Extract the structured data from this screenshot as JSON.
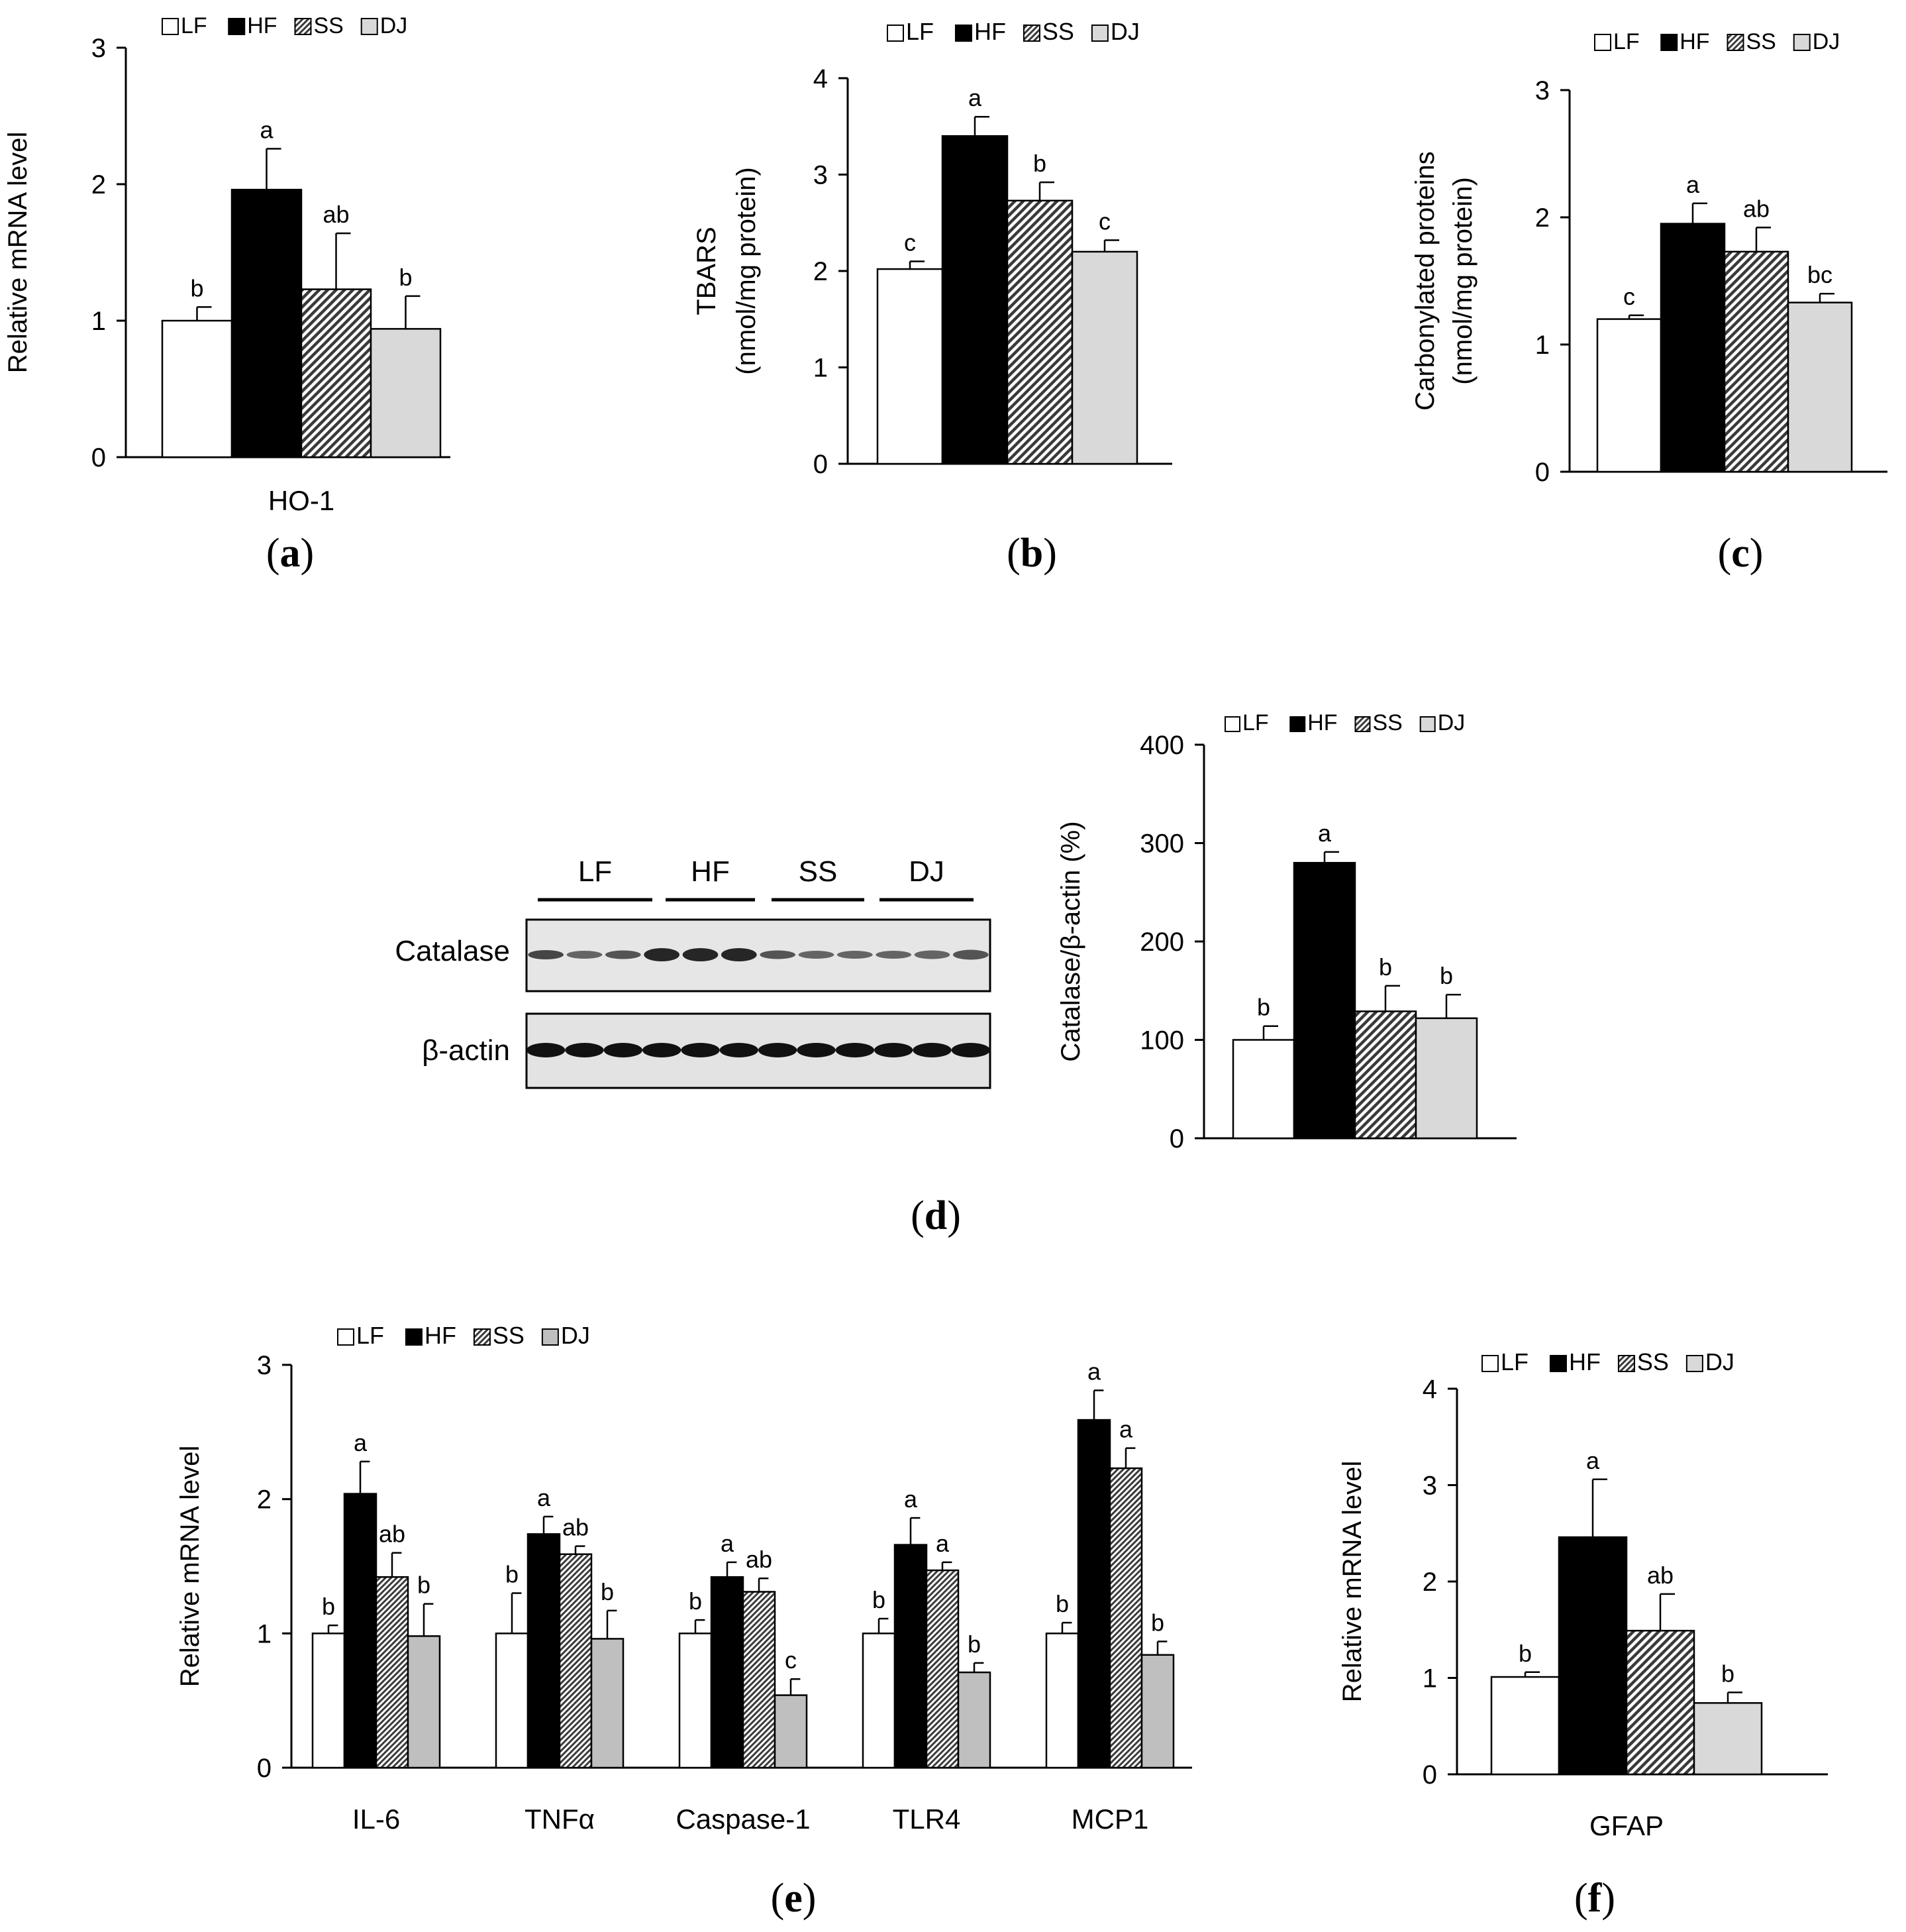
{
  "legend": [
    "LF",
    "HF",
    "SS",
    "DJ"
  ],
  "colors": {
    "LF": "#ffffff",
    "HF": "#000000",
    "SS": "hatch",
    "DJ": "#d9d9d9",
    "DJ_e": "#bfbfbf"
  },
  "panel_labels": {
    "a": "a",
    "b": "b",
    "c": "c",
    "d": "d",
    "e": "e",
    "f": "f"
  },
  "chart_data": [
    {
      "id": "a",
      "type": "bar",
      "ylabel": "Relative mRNA level",
      "ylabel2": "",
      "ylim": [
        0,
        3
      ],
      "yticks": [
        "0",
        "1",
        "2",
        "3"
      ],
      "categories": [
        "HO-1"
      ],
      "series": [
        {
          "name": "LF",
          "values": [
            1.0
          ],
          "errors": [
            0.1
          ],
          "letters": [
            "b"
          ]
        },
        {
          "name": "HF",
          "values": [
            1.96
          ],
          "errors": [
            0.3
          ],
          "letters": [
            "a"
          ]
        },
        {
          "name": "SS",
          "values": [
            1.23
          ],
          "errors": [
            0.41
          ],
          "letters": [
            "ab"
          ]
        },
        {
          "name": "DJ",
          "values": [
            0.94
          ],
          "errors": [
            0.24
          ],
          "letters": [
            "b"
          ]
        }
      ]
    },
    {
      "id": "b",
      "type": "bar",
      "ylabel": "TBARS",
      "ylabel2": "(nmol/mg protein)",
      "ylim": [
        0,
        4
      ],
      "yticks": [
        "0",
        "1",
        "2",
        "3",
        "4"
      ],
      "categories": [
        ""
      ],
      "series": [
        {
          "name": "LF",
          "values": [
            2.02
          ],
          "errors": [
            0.08
          ],
          "letters": [
            "c"
          ]
        },
        {
          "name": "HF",
          "values": [
            3.4
          ],
          "errors": [
            0.2
          ],
          "letters": [
            "a"
          ]
        },
        {
          "name": "SS",
          "values": [
            2.73
          ],
          "errors": [
            0.19
          ],
          "letters": [
            "b"
          ]
        },
        {
          "name": "DJ",
          "values": [
            2.2
          ],
          "errors": [
            0.12
          ],
          "letters": [
            "c"
          ]
        }
      ]
    },
    {
      "id": "c",
      "type": "bar",
      "ylabel": "Carbonylated proteins",
      "ylabel2": "(nmol/mg protein)",
      "ylim": [
        0,
        3
      ],
      "yticks": [
        "0",
        "1",
        "2",
        "3"
      ],
      "categories": [
        ""
      ],
      "series": [
        {
          "name": "LF",
          "values": [
            1.2
          ],
          "errors": [
            0.03
          ],
          "letters": [
            "c"
          ]
        },
        {
          "name": "HF",
          "values": [
            1.95
          ],
          "errors": [
            0.16
          ],
          "letters": [
            "a"
          ]
        },
        {
          "name": "SS",
          "values": [
            1.73
          ],
          "errors": [
            0.19
          ],
          "letters": [
            "ab"
          ]
        },
        {
          "name": "DJ",
          "values": [
            1.33
          ],
          "errors": [
            0.07
          ],
          "letters": [
            "bc"
          ]
        }
      ]
    },
    {
      "id": "d",
      "type": "bar",
      "ylabel": "Catalase/β-actin (%)",
      "ylabel2": "",
      "ylim": [
        0,
        400
      ],
      "yticks": [
        "0",
        "100",
        "200",
        "300",
        "400"
      ],
      "categories": [
        ""
      ],
      "series": [
        {
          "name": "LF",
          "values": [
            100
          ],
          "errors": [
            14
          ],
          "letters": [
            "b"
          ]
        },
        {
          "name": "HF",
          "values": [
            280
          ],
          "errors": [
            11
          ],
          "letters": [
            "a"
          ]
        },
        {
          "name": "SS",
          "values": [
            129
          ],
          "errors": [
            26
          ],
          "letters": [
            "b"
          ]
        },
        {
          "name": "DJ",
          "values": [
            122
          ],
          "errors": [
            24
          ],
          "letters": [
            "b"
          ]
        }
      ]
    },
    {
      "id": "e",
      "type": "bar",
      "ylabel": "Relative mRNA level",
      "ylabel2": "",
      "ylim": [
        0,
        3
      ],
      "yticks": [
        "0",
        "1",
        "2",
        "3"
      ],
      "categories": [
        "IL-6",
        "TNFα",
        "Caspase-1",
        "TLR4",
        "MCP1"
      ],
      "series": [
        {
          "name": "LF",
          "values": [
            1.0,
            1.0,
            1.0,
            1.0,
            1.0
          ],
          "errors": [
            0.06,
            0.3,
            0.1,
            0.11,
            0.08
          ],
          "letters": [
            "b",
            "b",
            "b",
            "b",
            "b"
          ]
        },
        {
          "name": "HF",
          "values": [
            2.04,
            1.74,
            1.42,
            1.66,
            2.59
          ],
          "errors": [
            0.24,
            0.13,
            0.11,
            0.2,
            0.22
          ],
          "letters": [
            "a",
            "a",
            "a",
            "a",
            "a"
          ]
        },
        {
          "name": "SS",
          "values": [
            1.42,
            1.59,
            1.31,
            1.47,
            2.23
          ],
          "errors": [
            0.18,
            0.06,
            0.1,
            0.06,
            0.15
          ],
          "letters": [
            "ab",
            "ab",
            "ab",
            "a",
            "a"
          ]
        },
        {
          "name": "DJ",
          "values": [
            0.98,
            0.96,
            0.54,
            0.71,
            0.84
          ],
          "errors": [
            0.24,
            0.21,
            0.12,
            0.07,
            0.1
          ],
          "letters": [
            "b",
            "b",
            "c",
            "b",
            "b"
          ]
        }
      ]
    },
    {
      "id": "f",
      "type": "bar",
      "ylabel": "Relative mRNA level",
      "ylabel2": "",
      "ylim": [
        0,
        4
      ],
      "yticks": [
        "0",
        "1",
        "2",
        "3",
        "4"
      ],
      "categories": [
        "GFAP"
      ],
      "series": [
        {
          "name": "LF",
          "values": [
            1.01
          ],
          "errors": [
            0.05
          ],
          "letters": [
            "b"
          ]
        },
        {
          "name": "HF",
          "values": [
            2.46
          ],
          "errors": [
            0.6
          ],
          "letters": [
            "a"
          ]
        },
        {
          "name": "SS",
          "values": [
            1.49
          ],
          "errors": [
            0.38
          ],
          "letters": [
            "ab"
          ]
        },
        {
          "name": "DJ",
          "values": [
            0.74
          ],
          "errors": [
            0.11
          ],
          "letters": [
            "b"
          ]
        }
      ]
    }
  ],
  "blot": {
    "groups": [
      "LF",
      "HF",
      "SS",
      "DJ"
    ],
    "rows": [
      "Catalase",
      "β-actin"
    ]
  }
}
